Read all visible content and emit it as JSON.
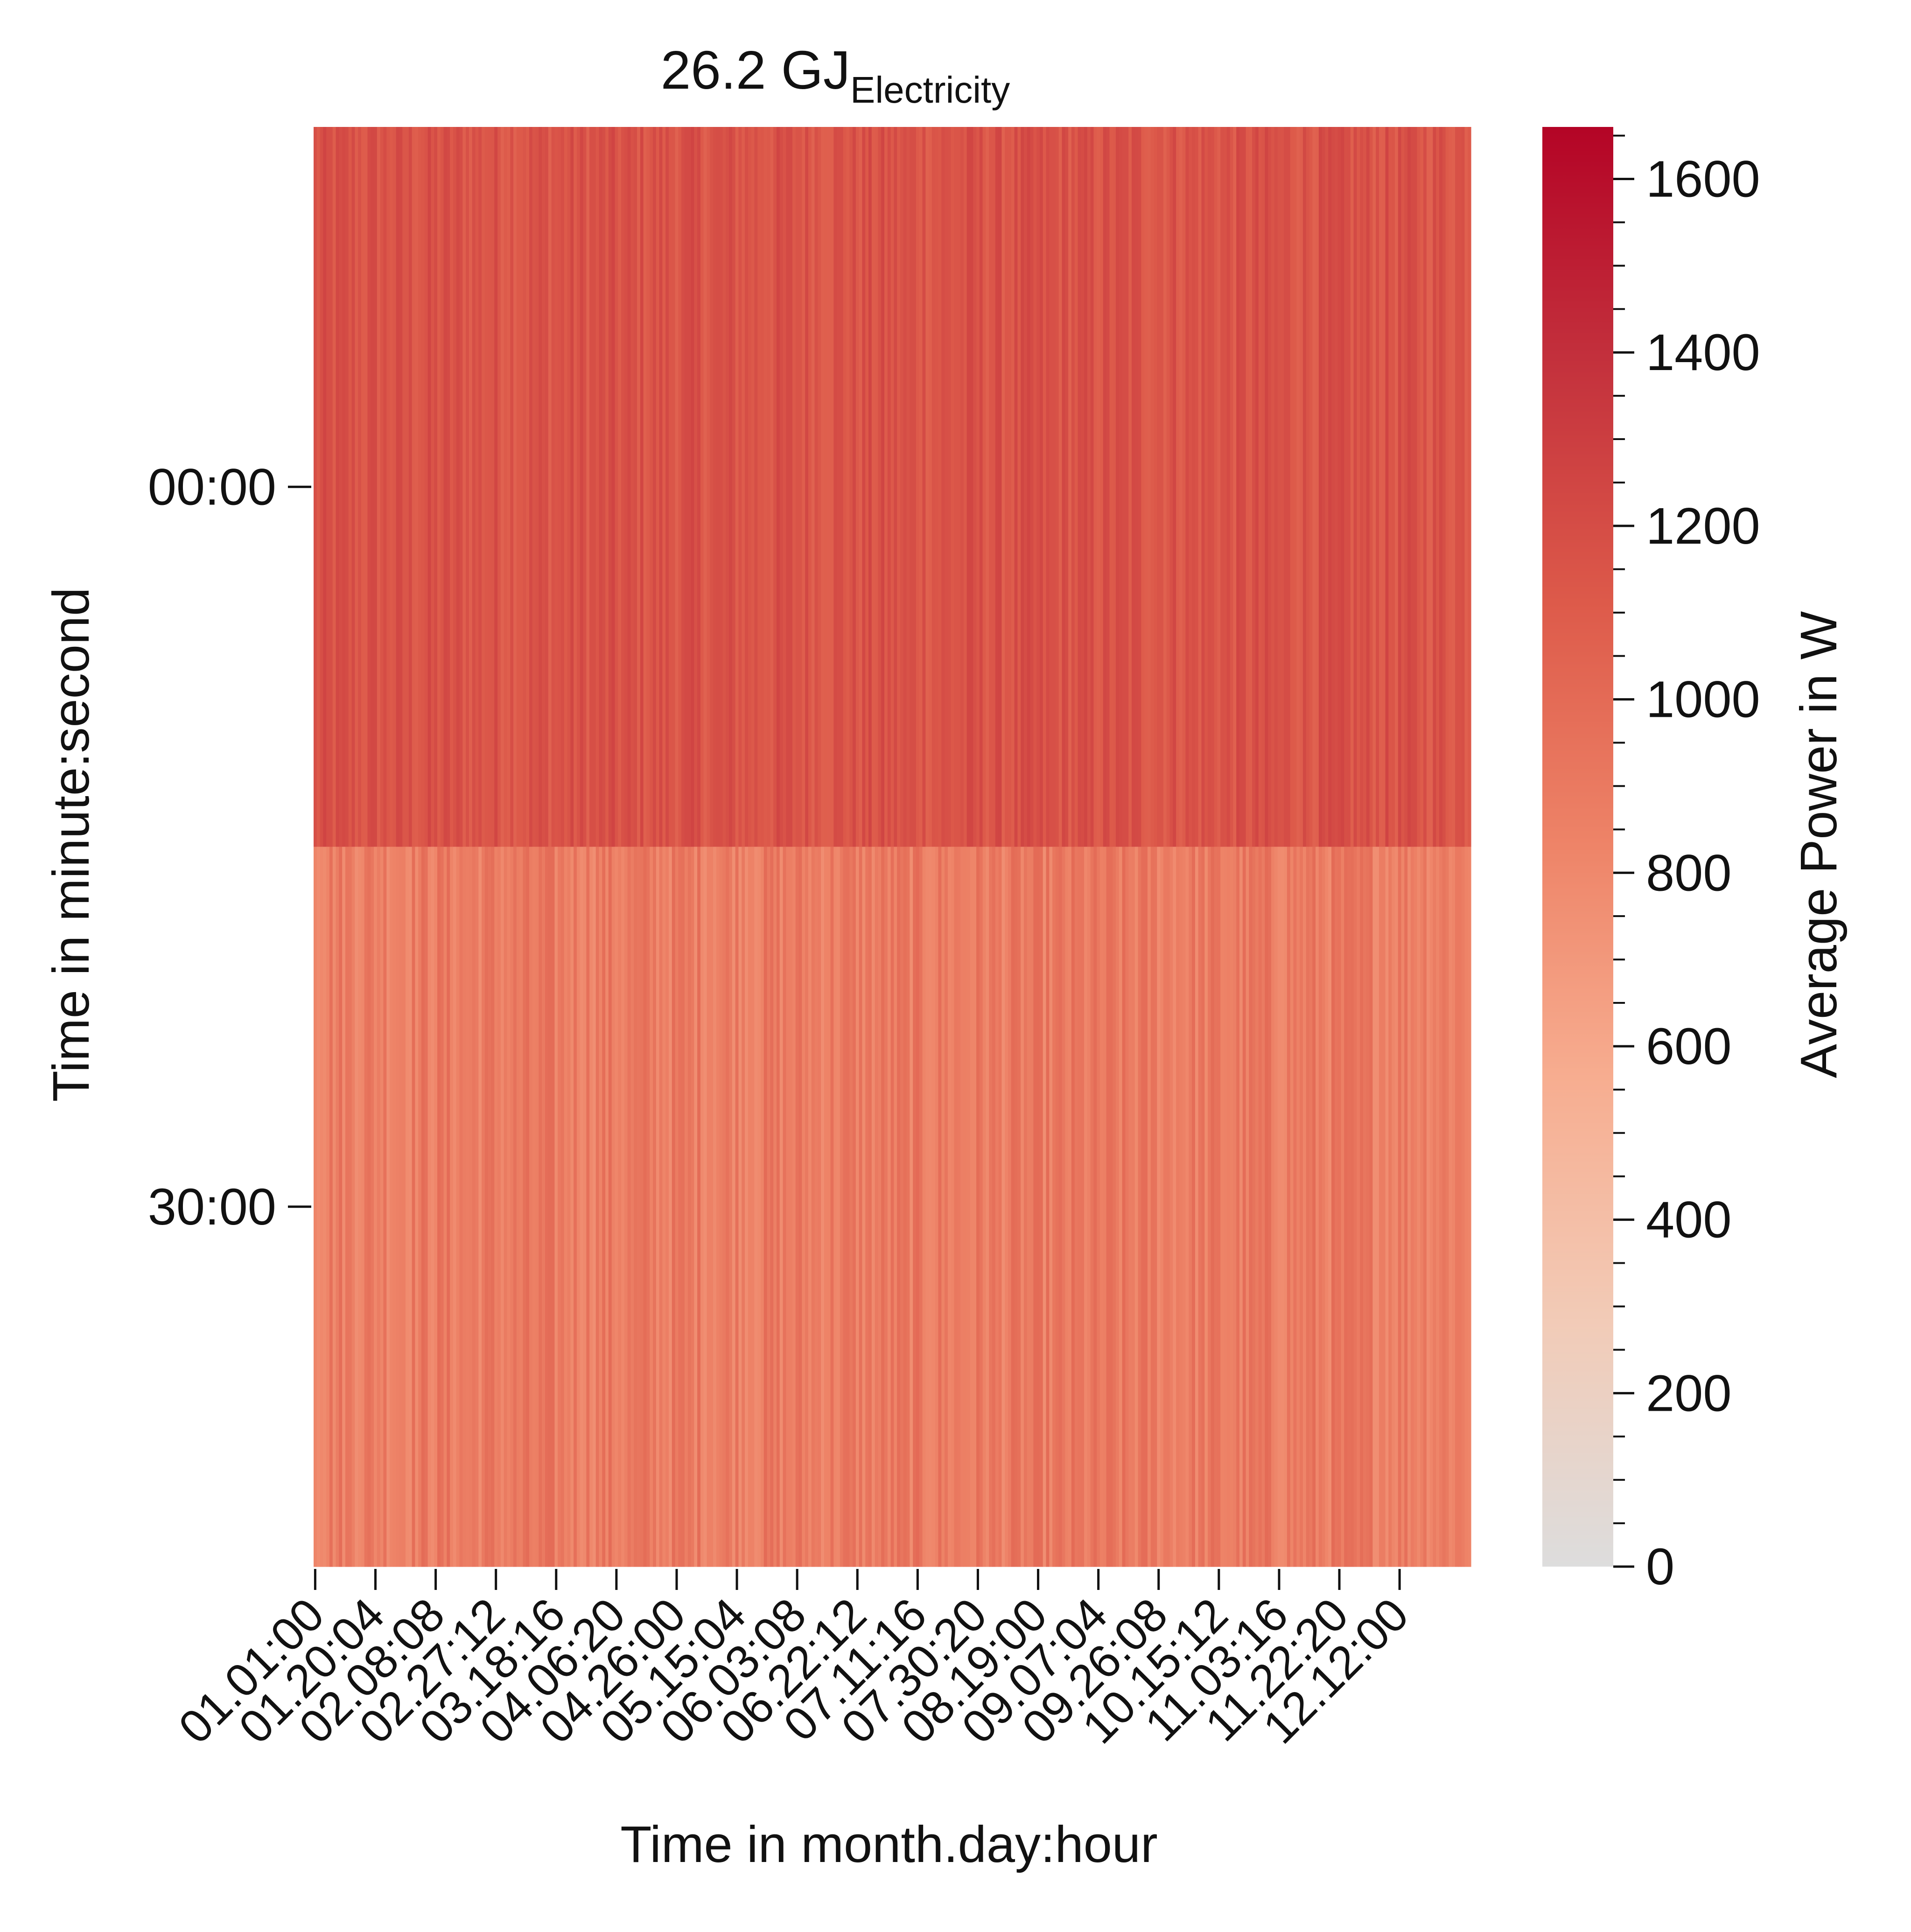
{
  "chart_data": {
    "type": "heatmap",
    "title": "26.2 GJ",
    "title_subscript": "Electricity",
    "xlabel": "Time in month.day:hour",
    "ylabel": "Time in minute:second",
    "x_tick_labels": [
      "01.01:00",
      "01.20:04",
      "02.08:08",
      "02.27:12",
      "03.18:16",
      "04.06:20",
      "04.26:00",
      "05.15:04",
      "06.03:08",
      "06.22:12",
      "07.11:16",
      "07.30:20",
      "08.19:00",
      "09.07:04",
      "09.26:08",
      "10.15:12",
      "11.03:16",
      "11.22:20",
      "12.12:00"
    ],
    "x_tick_step_columns": 19,
    "x_column_count": 365,
    "y_tick_labels": [
      "00:00",
      "30:00"
    ],
    "y_rows": [
      "00:00",
      "30:00"
    ],
    "approx_values": [
      {
        "row": "00:00",
        "low_W": 1050,
        "high_W": 1250
      },
      {
        "row": "30:00",
        "low_W": 760,
        "high_W": 1000
      }
    ],
    "colorbar": {
      "label": "Average Power in W",
      "min": 0,
      "max": 1660,
      "ticks": [
        0,
        200,
        400,
        600,
        800,
        1000,
        1200,
        1400,
        1600
      ],
      "colormap": "coolwarm upper half (gray to red)"
    }
  },
  "colors": {
    "cmap_stops": [
      "#dddddd",
      "#f2cbb7",
      "#f7ad90",
      "#ee8468",
      "#dd5a4a",
      "#c3303c",
      "#b40426"
    ]
  }
}
